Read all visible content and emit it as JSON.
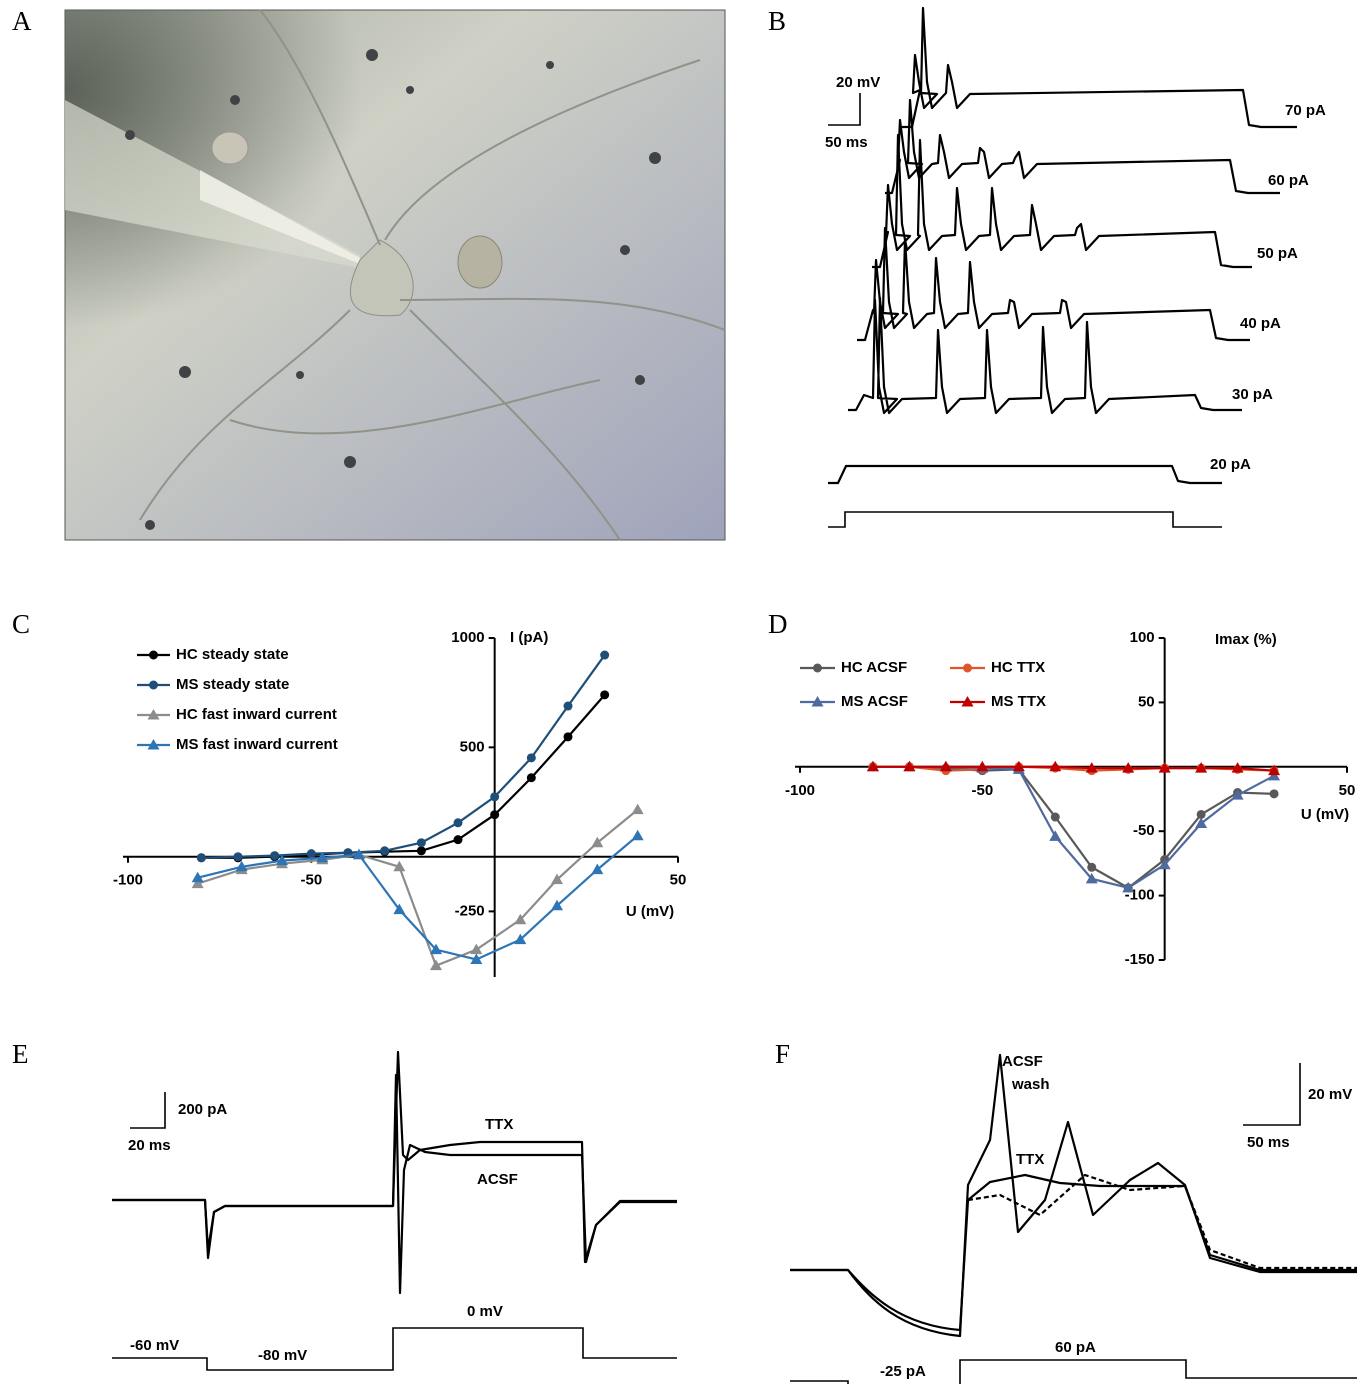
{
  "panel_labels": [
    "A",
    "B",
    "C",
    "D",
    "E",
    "F"
  ],
  "panel_b": {
    "scale_v": "20 mV",
    "scale_t": "50 ms",
    "traces": [
      "70 pA",
      "60 pA",
      "50 pA",
      "40 pA",
      "30 pA",
      "20 pA"
    ]
  },
  "chart_data": [
    {
      "type": "line",
      "x_label": "U (mV)",
      "y_label": "I (pA)",
      "xlim": [
        -100,
        50
      ],
      "ylim": [
        -550,
        1000
      ],
      "xticks": [
        -100,
        -50,
        50
      ],
      "yticks": [
        -250,
        500,
        1000
      ],
      "series": [
        {
          "name": "HC steady state",
          "color": "#000000",
          "marker": "circle",
          "x": [
            -80,
            -70,
            -60,
            -50,
            -40,
            -30,
            -20,
            -10,
            0,
            10,
            20,
            30
          ],
          "values": [
            -5,
            -5,
            0,
            9,
            18,
            23,
            27,
            78,
            192,
            361,
            548,
            740
          ]
        },
        {
          "name": "MS steady state",
          "color": "#1f4e79",
          "marker": "circle",
          "x": [
            -80,
            -70,
            -60,
            -50,
            -40,
            -30,
            -20,
            -10,
            0,
            10,
            20,
            30
          ],
          "values": [
            -5,
            0,
            5,
            14,
            18,
            27,
            64,
            155,
            274,
            452,
            689,
            922
          ]
        },
        {
          "name": "HC fast inward current",
          "color": "#8c8c8c",
          "marker": "triangle",
          "x": [
            -81,
            -69,
            -58,
            -47,
            -37,
            -26,
            -16,
            -5,
            7,
            17,
            28,
            39
          ],
          "values": [
            -123,
            -59,
            -32,
            -14,
            9,
            -46,
            -498,
            -425,
            -288,
            -105,
            64,
            215
          ]
        },
        {
          "name": "MS fast inward current",
          "color": "#2e75b6",
          "marker": "triangle",
          "x": [
            -81,
            -69,
            -58,
            -47,
            -37,
            -26,
            -16,
            -5,
            7,
            17,
            28,
            39
          ],
          "values": [
            -96,
            -46,
            -18,
            -5,
            9,
            -242,
            -425,
            -470,
            -379,
            -224,
            -59,
            96
          ]
        }
      ]
    },
    {
      "type": "line",
      "x_label": "U (mV)",
      "y_label": "Imax (%)",
      "xlim": [
        -100,
        50
      ],
      "ylim": [
        -150,
        100
      ],
      "xticks": [
        -100,
        -50,
        50
      ],
      "yticks": [
        -150,
        -100,
        -50,
        50,
        100
      ],
      "x": [
        -80,
        -70,
        -60,
        -50,
        -40,
        -30,
        -20,
        -10,
        0,
        10,
        20,
        30
      ],
      "series": [
        {
          "name": "HC ACSF",
          "color": "#595959",
          "marker": "circle",
          "values": [
            0,
            0,
            -1,
            -3,
            -2,
            -39,
            -78,
            -94,
            -72,
            -37,
            -20,
            -21
          ]
        },
        {
          "name": "HC TTX",
          "color": "#e0562b",
          "marker": "circle",
          "values": [
            0,
            0,
            -3,
            -2,
            0,
            -1,
            -3,
            -2,
            -1,
            -1,
            -2,
            -3
          ]
        },
        {
          "name": "MS ACSF",
          "color": "#4f6a9e",
          "marker": "triangle",
          "values": [
            0,
            0,
            0,
            -1,
            -2,
            -54,
            -87,
            -94,
            -76,
            -44,
            -22,
            -7
          ]
        },
        {
          "name": "MS TTX",
          "color": "#c00000",
          "marker": "triangle",
          "values": [
            0,
            0,
            0,
            0,
            0,
            0,
            -1,
            -1,
            -1,
            -1,
            -1,
            -3
          ]
        }
      ]
    }
  ],
  "panel_e": {
    "scale_i": "200 pA",
    "scale_t": "20 ms",
    "ttx": "TTX",
    "acsf": "ACSF",
    "steps": [
      "-60 mV",
      "-80 mV",
      "0 mV"
    ]
  },
  "panel_f": {
    "acsf": "ACSF",
    "wash": "wash",
    "ttx": "TTX",
    "scale_v": "20 mV",
    "scale_t": "50 ms",
    "steps": [
      "-25 pA",
      "60 pA"
    ]
  }
}
